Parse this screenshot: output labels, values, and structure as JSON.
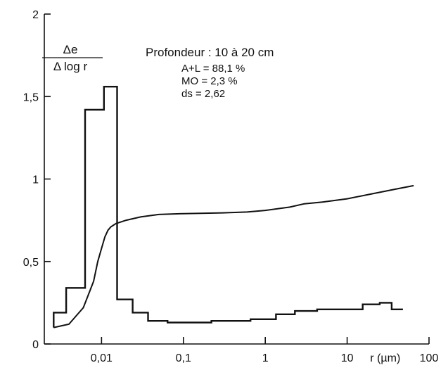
{
  "chart_data": {
    "type": "line",
    "title": "Profondeur : 10 à 20 cm",
    "annotations": [
      "A+L = 88,1 %",
      "MO = 2,3 %",
      "ds = 2,62"
    ],
    "ylabel": {
      "numerator": "Δe",
      "denominator": "Δ log r"
    },
    "xlabel": "r (µm)",
    "x_scale": "log",
    "xlim": [
      0.002,
      100
    ],
    "ylim": [
      0,
      2
    ],
    "x_ticks": [
      {
        "value": 0.01,
        "label": "0,01"
      },
      {
        "value": 0.1,
        "label": "0,1"
      },
      {
        "value": 1,
        "label": "1"
      },
      {
        "value": 10,
        "label": "10"
      },
      {
        "value": 100,
        "label": "100"
      }
    ],
    "y_ticks": [
      {
        "value": 0,
        "label": "0"
      },
      {
        "value": 0.5,
        "label": "0,5"
      },
      {
        "value": 1,
        "label": "1"
      },
      {
        "value": 1.5,
        "label": "1,5"
      },
      {
        "value": 2,
        "label": "2"
      }
    ],
    "grid": false,
    "series": [
      {
        "style": "step",
        "bins": [
          {
            "x0": 0.0026,
            "x1": 0.0037,
            "y": 0.19
          },
          {
            "x0": 0.0037,
            "x1": 0.0063,
            "y": 0.34
          },
          {
            "x0": 0.0063,
            "x1": 0.0107,
            "y": 1.42
          },
          {
            "x0": 0.0107,
            "x1": 0.0155,
            "y": 1.56
          },
          {
            "x0": 0.0155,
            "x1": 0.024,
            "y": 0.27
          },
          {
            "x0": 0.024,
            "x1": 0.037,
            "y": 0.19
          },
          {
            "x0": 0.037,
            "x1": 0.064,
            "y": 0.14
          },
          {
            "x0": 0.064,
            "x1": 0.22,
            "y": 0.13
          },
          {
            "x0": 0.22,
            "x1": 0.66,
            "y": 0.14
          },
          {
            "x0": 0.66,
            "x1": 1.35,
            "y": 0.15
          },
          {
            "x0": 1.35,
            "x1": 2.3,
            "y": 0.18
          },
          {
            "x0": 2.3,
            "x1": 4.3,
            "y": 0.2
          },
          {
            "x0": 4.3,
            "x1": 15.5,
            "y": 0.21
          },
          {
            "x0": 15.5,
            "x1": 25,
            "y": 0.24
          },
          {
            "x0": 25,
            "x1": 35,
            "y": 0.25
          },
          {
            "x0": 35,
            "x1": 48,
            "y": 0.21
          }
        ]
      },
      {
        "style": "line",
        "x": [
          0.0026,
          0.004,
          0.006,
          0.008,
          0.009,
          0.01,
          0.011,
          0.012,
          0.013,
          0.015,
          0.02,
          0.03,
          0.05,
          0.1,
          0.3,
          0.6,
          1,
          2,
          3,
          5,
          10,
          20,
          40,
          65
        ],
        "y": [
          0.1,
          0.12,
          0.22,
          0.38,
          0.5,
          0.58,
          0.65,
          0.69,
          0.71,
          0.73,
          0.75,
          0.77,
          0.785,
          0.79,
          0.795,
          0.8,
          0.81,
          0.83,
          0.85,
          0.86,
          0.88,
          0.91,
          0.94,
          0.96
        ]
      }
    ]
  }
}
